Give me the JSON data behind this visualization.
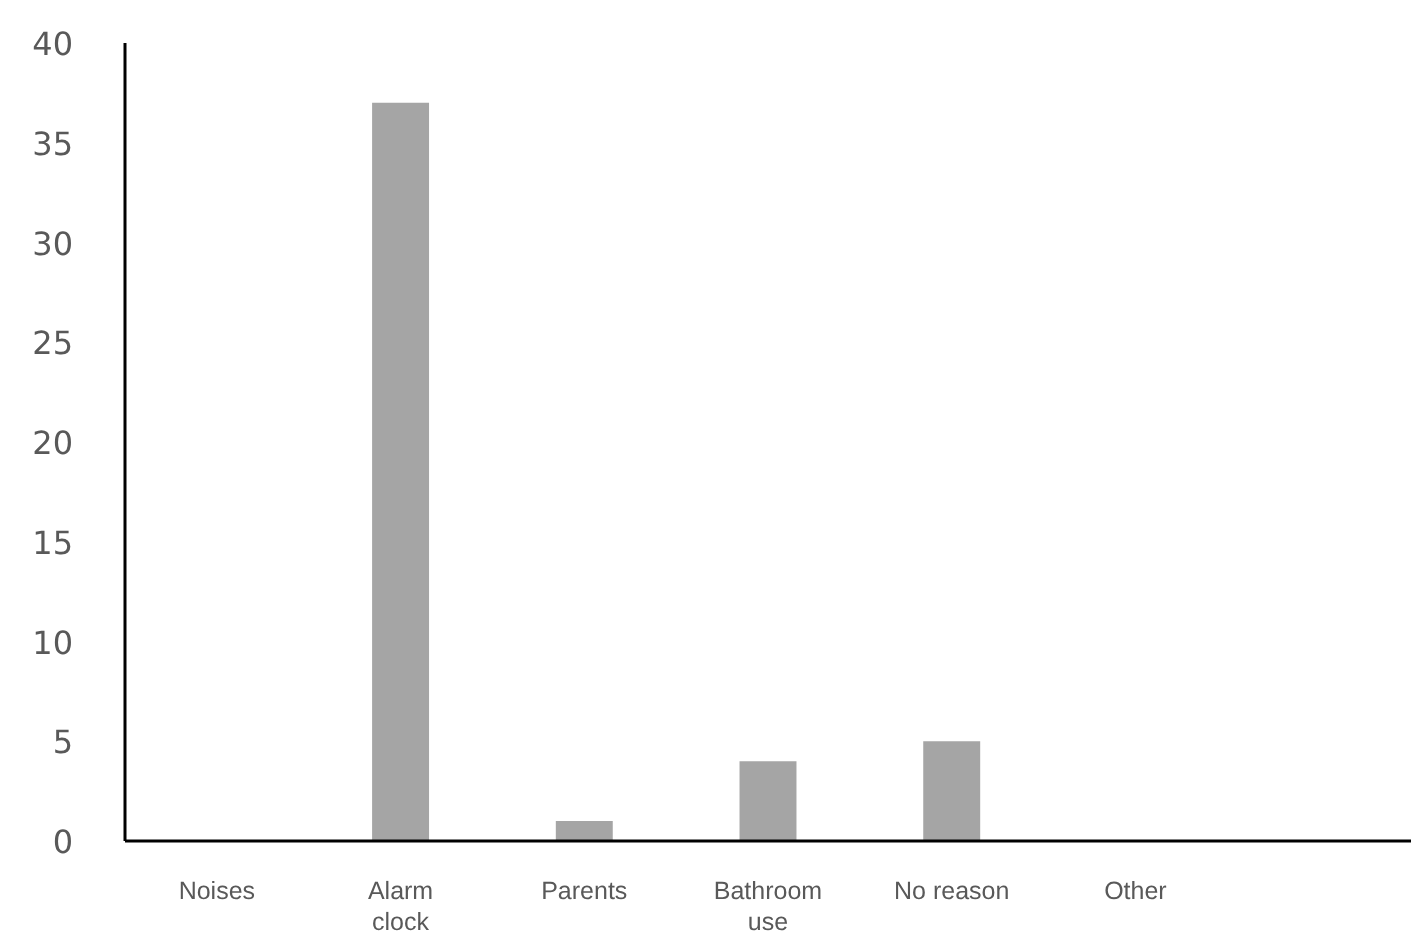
{
  "chart_data": {
    "type": "bar",
    "categories": [
      "Noises",
      "Alarm clock",
      "Parents",
      "Bathroom use",
      "No reason",
      "Other",
      null
    ],
    "values": [
      0,
      37,
      1,
      4,
      5,
      0,
      null
    ],
    "color": "#a5a5a5",
    "ylim": [
      0,
      40
    ],
    "yticks": [
      0,
      5,
      10,
      15,
      20,
      25,
      30,
      35,
      40
    ]
  }
}
